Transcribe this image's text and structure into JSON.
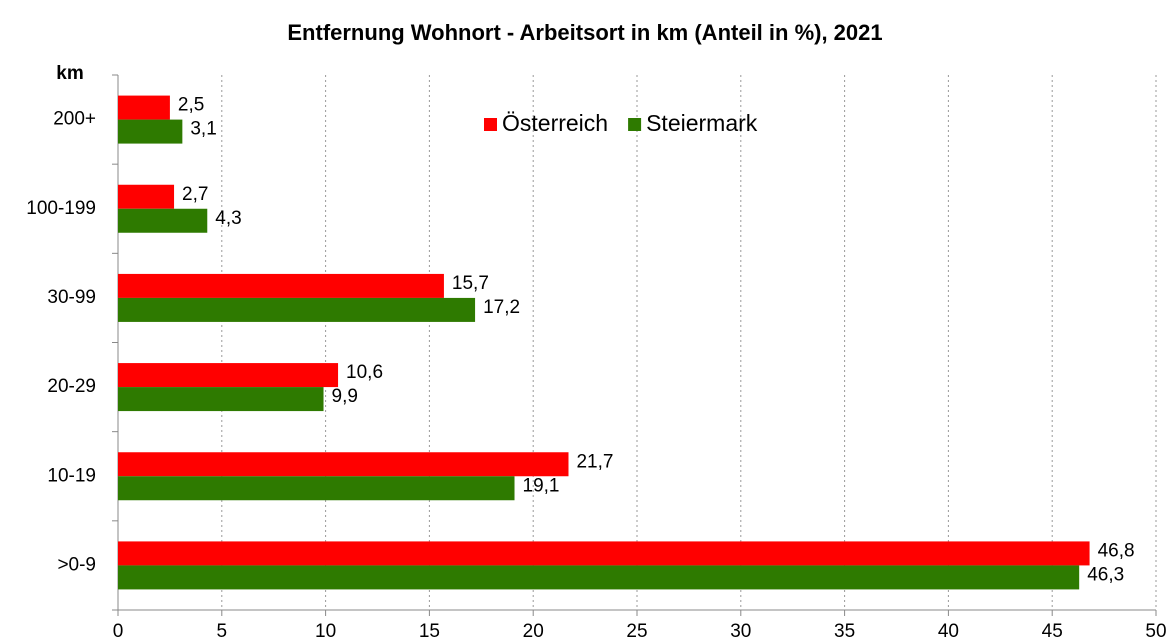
{
  "chart_data": {
    "type": "barh",
    "title": "Entfernung Wohnort - Arbeitsort in km (Anteil in %), 2021",
    "y_label": "km",
    "categories": [
      "200+",
      "100-199",
      "30-99",
      "20-29",
      "10-19",
      ">0-9"
    ],
    "series": [
      {
        "name": "Österreich",
        "color": "#ff0000",
        "values": [
          2.5,
          2.7,
          15.7,
          10.6,
          21.7,
          46.8
        ],
        "value_labels": [
          "2,5",
          "2,7",
          "15,7",
          "10,6",
          "21,7",
          "46,8"
        ]
      },
      {
        "name": "Steiermark",
        "color": "#2e7a00",
        "values": [
          3.1,
          4.3,
          17.2,
          9.9,
          19.1,
          46.3
        ],
        "value_labels": [
          "3,1",
          "4,3",
          "17,2",
          "9,9",
          "19,1",
          "46,3"
        ]
      }
    ],
    "xlim": [
      0,
      50
    ],
    "xticks": [
      0,
      5,
      10,
      15,
      20,
      25,
      30,
      35,
      40,
      45,
      50
    ],
    "grid": true,
    "legend": "top"
  }
}
